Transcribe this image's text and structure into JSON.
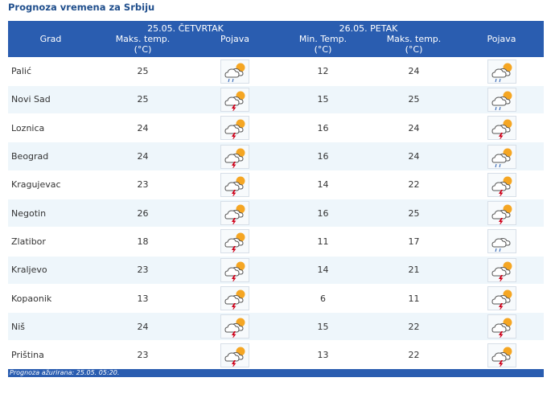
{
  "title": "Prognoza vremena za Srbiju",
  "header": {
    "grad": "Grad",
    "day1": {
      "date": "25.05. ČETVRTAK",
      "max_label_line1": "Maks. temp.",
      "max_label_line2": "(°C)",
      "pojava": "Pojava"
    },
    "day2": {
      "date": "26.05. PETAK",
      "min_label_line1": "Min. Temp.",
      "min_label_line2": "(°C)",
      "max_label_line1": "Maks. temp.",
      "max_label_line2": "(°C)",
      "pojava": "Pojava"
    }
  },
  "rows": [
    {
      "city": "Palić",
      "max1": "25",
      "icon1": "cloud-sun-rain-icon",
      "min2": "12",
      "max2": "24",
      "icon2": "cloud-sun-rain-icon"
    },
    {
      "city": "Novi Sad",
      "max1": "25",
      "icon1": "thunderstorm-sun-icon",
      "min2": "15",
      "max2": "25",
      "icon2": "cloud-sun-rain-icon"
    },
    {
      "city": "Loznica",
      "max1": "24",
      "icon1": "thunderstorm-sun-icon",
      "min2": "16",
      "max2": "24",
      "icon2": "thunderstorm-sun-icon"
    },
    {
      "city": "Beograd",
      "max1": "24",
      "icon1": "thunderstorm-sun-icon",
      "min2": "16",
      "max2": "24",
      "icon2": "cloud-sun-rain-icon"
    },
    {
      "city": "Kragujevac",
      "max1": "23",
      "icon1": "thunderstorm-sun-icon",
      "min2": "14",
      "max2": "22",
      "icon2": "thunderstorm-sun-icon"
    },
    {
      "city": "Negotin",
      "max1": "26",
      "icon1": "thunderstorm-sun-icon",
      "min2": "16",
      "max2": "25",
      "icon2": "thunderstorm-sun-icon"
    },
    {
      "city": "Zlatibor",
      "max1": "18",
      "icon1": "thunderstorm-sun-icon",
      "min2": "11",
      "max2": "17",
      "icon2": "cloud-rain-icon"
    },
    {
      "city": "Kraljevo",
      "max1": "23",
      "icon1": "thunderstorm-sun-icon",
      "min2": "14",
      "max2": "21",
      "icon2": "thunderstorm-sun-icon"
    },
    {
      "city": "Kopaonik",
      "max1": "13",
      "icon1": "thunderstorm-sun-icon",
      "min2": "6",
      "max2": "11",
      "icon2": "thunderstorm-sun-icon"
    },
    {
      "city": "Niš",
      "max1": "24",
      "icon1": "thunderstorm-sun-icon",
      "min2": "15",
      "max2": "22",
      "icon2": "thunderstorm-sun-icon"
    },
    {
      "city": "Priština",
      "max1": "23",
      "icon1": "thunderstorm-sun-icon",
      "min2": "13",
      "max2": "22",
      "icon2": "thunderstorm-sun-icon"
    }
  ],
  "footer": "Prognoza ažurirana:  25.05. 05:20.",
  "colors": {
    "header_bg": "#2a5db0",
    "title": "#1f4e8c",
    "row_alt": "#eef6fb",
    "sun": "#f5a623",
    "bolt": "#d0021b",
    "rain": "#2a5db0"
  }
}
